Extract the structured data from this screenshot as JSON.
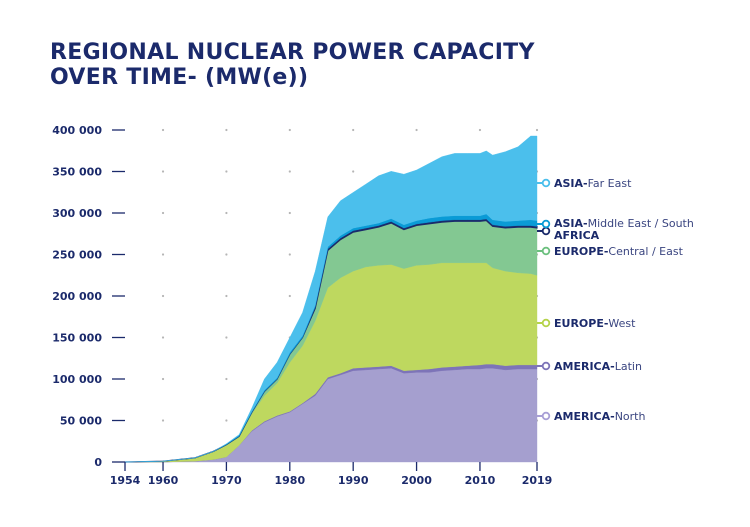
{
  "chart_data": {
    "type": "area",
    "stacked": true,
    "title_lines": [
      "REGIONAL NUCLEAR POWER  CAPACITY",
      "OVER TIME- (MW(e))"
    ],
    "xlabel": "",
    "ylabel": "",
    "ylim": [
      0,
      400000
    ],
    "xlim": [
      1954,
      2019
    ],
    "y_ticks": [
      0,
      50000,
      100000,
      150000,
      200000,
      250000,
      300000,
      350000,
      400000
    ],
    "y_tick_labels": [
      "0",
      "50 000",
      "100 000",
      "150 000",
      "200 000",
      "250 000",
      "300 000",
      "350 000",
      "400 000"
    ],
    "x_ticks": [
      1954,
      1960,
      1970,
      1980,
      1990,
      2000,
      2010,
      2019
    ],
    "x_tick_labels": [
      "1954",
      "1960",
      "1970",
      "1980",
      "1990",
      "2000",
      "2010",
      "2019"
    ],
    "grid": "dots",
    "legend_placement": "right, aligned to series end",
    "value_scale": 1000,
    "x": [
      1954,
      1960,
      1965,
      1968,
      1970,
      1972,
      1974,
      1976,
      1978,
      1980,
      1982,
      1984,
      1986,
      1988,
      1990,
      1992,
      1994,
      1996,
      1998,
      2000,
      2002,
      2004,
      2006,
      2008,
      2010,
      2011,
      2012,
      2014,
      2016,
      2018,
      2019
    ],
    "series": [
      {
        "name": "AMERICA-North",
        "bold": "AMERICA-",
        "rest": "North",
        "color": "#a59fcf",
        "marker_color": "#a89fd6",
        "values": [
          0,
          0,
          1,
          3,
          6,
          20,
          37,
          48,
          55,
          60,
          70,
          80,
          100,
          105,
          110,
          111,
          112,
          113,
          107,
          108,
          108,
          110,
          111,
          112,
          112,
          113,
          113,
          111,
          112,
          112,
          112
        ]
      },
      {
        "name": "AMERICA-Latin",
        "bold": "AMERICA-",
        "rest": "Latin",
        "color": "#7d74b8",
        "marker_color": "#7d74b8",
        "values": [
          0,
          0,
          0,
          0,
          0,
          0,
          1,
          1,
          1,
          1,
          1,
          2,
          2,
          2,
          3,
          3,
          3,
          3,
          3,
          3,
          4,
          4,
          4,
          4,
          5,
          5,
          5,
          5,
          5,
          5,
          5
        ]
      },
      {
        "name": "EUROPE-West",
        "bold": "EUROPE-",
        "rest": "West",
        "color": "#bed85f",
        "marker_color": "#b5d34a",
        "values": [
          0,
          1,
          4,
          9,
          14,
          10,
          20,
          31,
          39,
          59,
          69,
          88,
          108,
          115,
          117,
          121,
          122,
          122,
          123,
          126,
          126,
          126,
          125,
          124,
          123,
          122,
          116,
          114,
          111,
          110,
          108
        ]
      },
      {
        "name": "EUROPE-Central / East",
        "bold": "EUROPE-",
        "rest": "Central / East",
        "color": "#83c892",
        "marker_color": "#6cc07f",
        "values": [
          0,
          0,
          0,
          1,
          1,
          1,
          2,
          5,
          5,
          10,
          10,
          15,
          45,
          46,
          47,
          45,
          46,
          50,
          47,
          48,
          49,
          49,
          50,
          50,
          50,
          51,
          50,
          52,
          55,
          56,
          57
        ]
      },
      {
        "name": "AFRICA",
        "bold": "AFRICA",
        "rest": "",
        "color": "#1b2a6b",
        "marker_color": "#1b2a6b",
        "values": [
          0,
          0,
          0,
          0,
          0,
          0,
          0,
          0,
          0,
          0,
          0,
          1.8,
          1.8,
          1.8,
          1.8,
          1.8,
          1.8,
          1.8,
          1.8,
          1.8,
          1.8,
          1.8,
          1.8,
          1.8,
          1.8,
          1.8,
          1.8,
          1.8,
          1.8,
          1.8,
          1.8
        ]
      },
      {
        "name": "ASIA-Middle East / South",
        "bold": "ASIA-",
        "rest": "Middle East / South",
        "color": "#0a9bd6",
        "marker_color": "#0a9bd6",
        "values": [
          0,
          0,
          0,
          0,
          0.5,
          1,
          1,
          1.5,
          1.5,
          2,
          2,
          2,
          2.5,
          3,
          3,
          3,
          3,
          3.5,
          4,
          4,
          5,
          5,
          5,
          5,
          5,
          6,
          6,
          6,
          6,
          7,
          7
        ]
      },
      {
        "name": "ASIA-Far East",
        "bold": "ASIA-",
        "rest": "Far East",
        "color": "#4bbfec",
        "marker_color": "#4bbfec",
        "values": [
          0,
          0,
          0,
          0,
          0.5,
          1,
          4,
          13.5,
          18.5,
          18,
          28,
          41,
          36,
          42,
          43,
          50,
          57,
          57,
          61,
          61,
          66,
          72,
          75,
          75,
          75,
          76,
          78,
          84,
          89,
          101,
          102
        ]
      }
    ]
  }
}
